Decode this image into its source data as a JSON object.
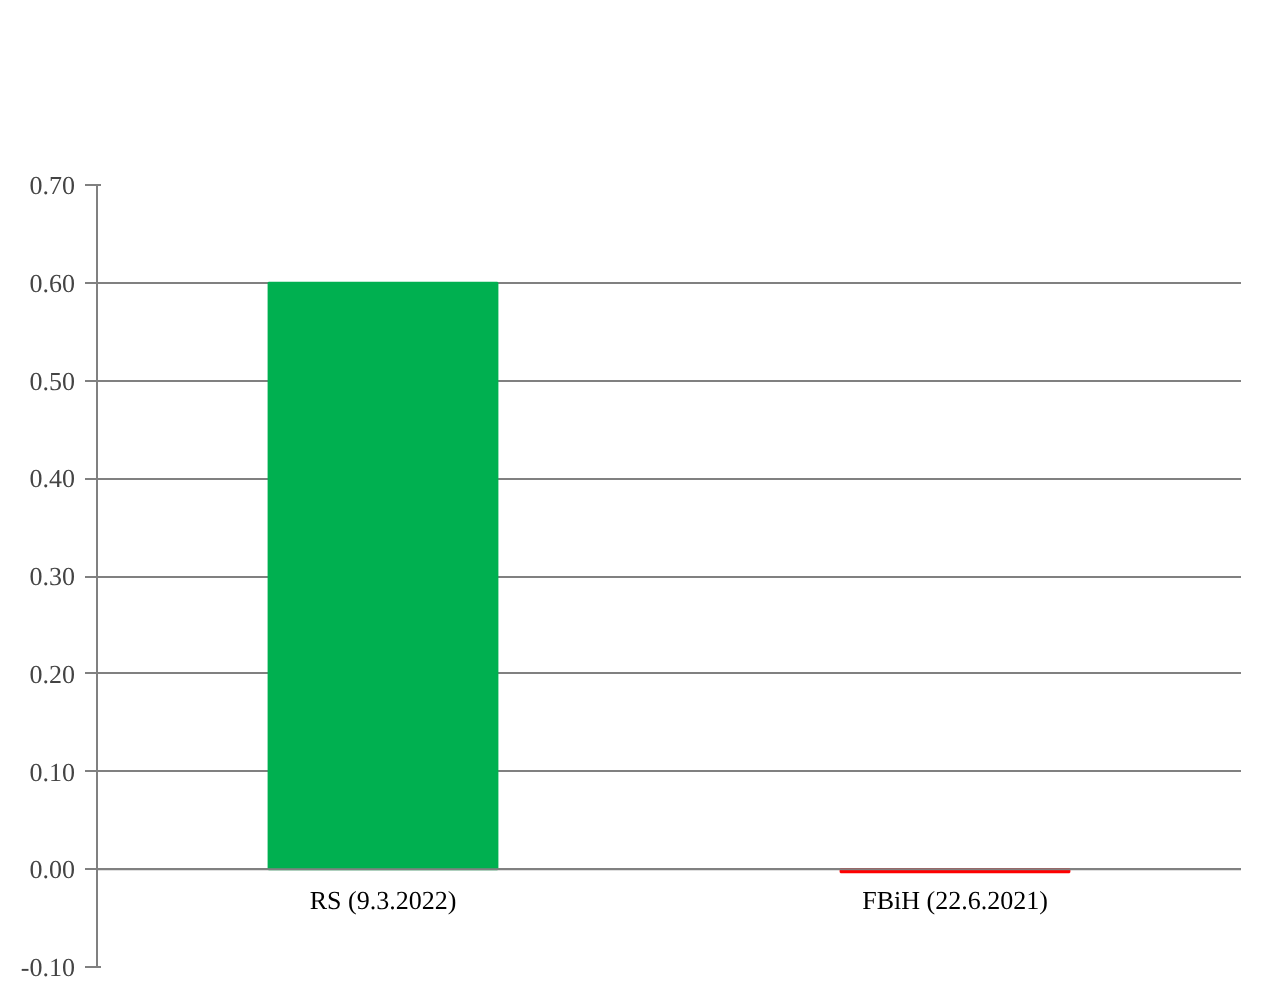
{
  "chart_data": {
    "type": "bar",
    "categories": [
      "RS (9.3.2022)",
      "FBiH (22.6.2021)"
    ],
    "values": [
      0.6,
      -0.003
    ],
    "colors": [
      "#00b050",
      "#ff0000"
    ],
    "ylim": [
      -0.1,
      0.7
    ],
    "yticks": [
      {
        "value": -0.1,
        "label": "-0.10"
      },
      {
        "value": 0,
        "label": "0.00"
      },
      {
        "value": 0.1,
        "label": "0.10"
      },
      {
        "value": 0.2,
        "label": "0.20"
      },
      {
        "value": 0.3,
        "label": "0.30"
      },
      {
        "value": 0.4,
        "label": "0.40"
      },
      {
        "value": 0.5,
        "label": "0.50"
      },
      {
        "value": 0.6,
        "label": "0.60"
      },
      {
        "value": 0.7,
        "label": "0.70"
      }
    ],
    "grid": "y"
  }
}
